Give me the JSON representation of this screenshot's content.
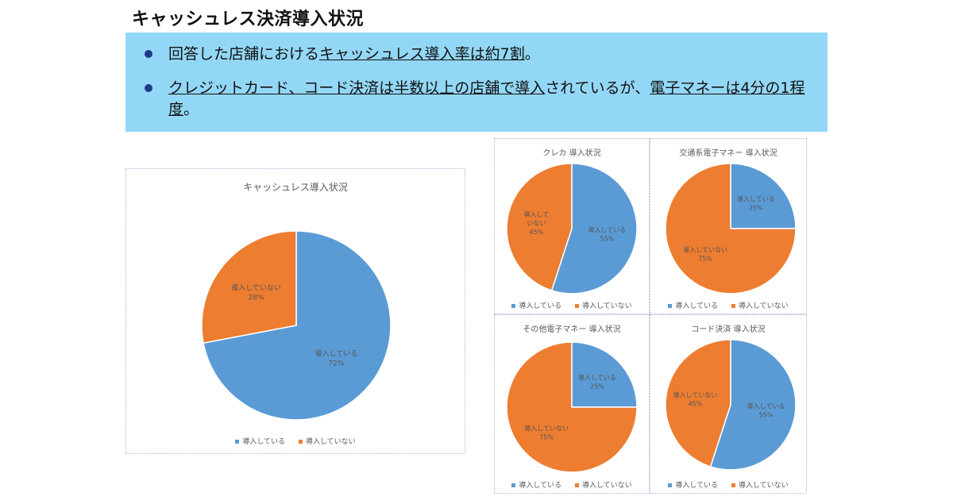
{
  "page_title": "キャッシュレス決済導入状況",
  "bullets": [
    {
      "segments": [
        {
          "text": "回答した店舗における",
          "u": false
        },
        {
          "text": "キャッシュレス導入率は約7割",
          "u": true
        },
        {
          "text": "。",
          "u": false
        }
      ]
    },
    {
      "segments": [
        {
          "text": "クレジットカード、コード決済は半数以上の店舗で導入",
          "u": true
        },
        {
          "text": "されているが、",
          "u": false
        },
        {
          "text": "電子マネーは4分の1程度",
          "u": true
        },
        {
          "text": "。",
          "u": false
        }
      ]
    }
  ],
  "colors": {
    "introduced": "#5b9bd5",
    "not_introduced": "#ed7d31"
  },
  "legend": {
    "introduced": "導入している",
    "not_introduced": "導入していない"
  },
  "chart_data": [
    {
      "id": "cashless",
      "type": "pie",
      "title": "キャッシュレス導入状況",
      "categories": [
        "導入している",
        "導入していない"
      ],
      "values": [
        72,
        28
      ],
      "labels": [
        [
          "導入している",
          "72%"
        ],
        [
          "導入していない",
          "28%"
        ]
      ],
      "legend_position": "bottom"
    },
    {
      "id": "credit",
      "type": "pie",
      "title": "クレカ 導入状況",
      "categories": [
        "導入している",
        "導入していない"
      ],
      "values": [
        55,
        45
      ],
      "labels": [
        [
          "導入している",
          "55%"
        ],
        [
          "導入して",
          "いない",
          "45%"
        ]
      ],
      "legend_position": "bottom"
    },
    {
      "id": "transit",
      "type": "pie",
      "title": "交通系電子マネー 導入状況",
      "categories": [
        "導入している",
        "導入していない"
      ],
      "values": [
        25,
        75
      ],
      "labels": [
        [
          "導入している",
          "25%"
        ],
        [
          "導入していない",
          "75%"
        ]
      ],
      "legend_position": "bottom"
    },
    {
      "id": "other_emoney",
      "type": "pie",
      "title": "その他電子マネー 導入状況",
      "categories": [
        "導入している",
        "導入していない"
      ],
      "values": [
        25,
        75
      ],
      "labels": [
        [
          "導入している",
          "25%"
        ],
        [
          "導入していない",
          "75%"
        ]
      ],
      "legend_position": "bottom"
    },
    {
      "id": "code",
      "type": "pie",
      "title": "コード決済 導入状況",
      "categories": [
        "導入している",
        "導入していない"
      ],
      "values": [
        55,
        45
      ],
      "labels": [
        [
          "導入している",
          "55%"
        ],
        [
          "導入していない",
          "45%"
        ]
      ],
      "legend_position": "bottom"
    }
  ]
}
